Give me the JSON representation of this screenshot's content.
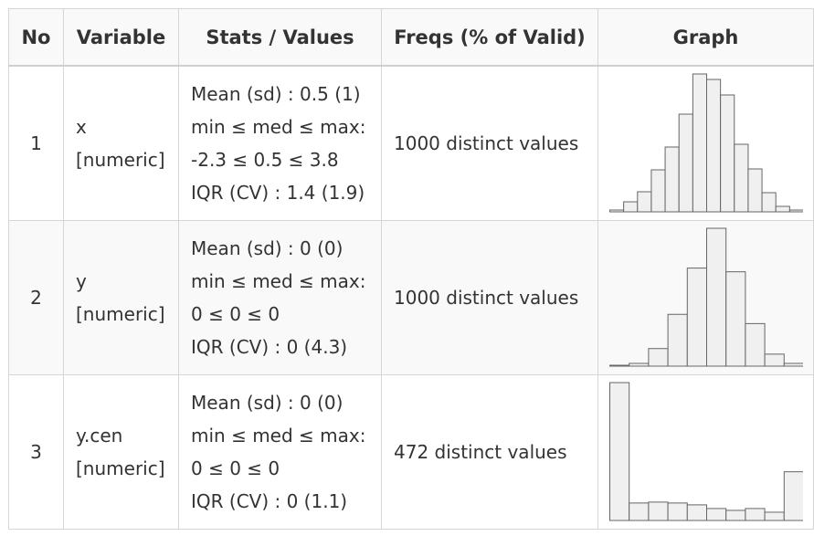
{
  "table": {
    "headers": {
      "no": "No",
      "variable": "Variable",
      "stats": "Stats / Values",
      "freqs": "Freqs (% of Valid)",
      "graph": "Graph"
    },
    "rows": [
      {
        "no": "1",
        "name": "x",
        "type": "[numeric]",
        "stats": [
          "Mean (sd) : 0.5 (1)",
          "min ≤ med ≤ max:",
          "-2.3 ≤ 0.5 ≤ 3.8",
          "IQR (CV) : 1.4 (1.9)"
        ],
        "freqs": "1000 distinct values"
      },
      {
        "no": "2",
        "name": "y",
        "type": "[numeric]",
        "stats": [
          "Mean (sd) : 0 (0)",
          "min ≤ med ≤ max:",
          "0 ≤ 0 ≤ 0",
          "IQR (CV) : 0 (4.3)"
        ],
        "freqs": "1000 distinct values"
      },
      {
        "no": "3",
        "name": "y.cen",
        "type": "[numeric]",
        "stats": [
          "Mean (sd) : 0 (0)",
          "min ≤ med ≤ max:",
          "0 ≤ 0 ≤ 0",
          "IQR (CV) : 0 (1.1)"
        ],
        "freqs": "472 distinct values"
      }
    ]
  },
  "chart_data": [
    {
      "type": "bar",
      "variable": "x",
      "values": [
        2,
        11,
        22,
        46,
        71,
        107,
        151,
        145,
        128,
        74,
        47,
        21,
        6,
        2
      ]
    },
    {
      "type": "bar",
      "variable": "y",
      "values": [
        1,
        3,
        19,
        56,
        106,
        149,
        102,
        46,
        13,
        3
      ]
    },
    {
      "type": "bar",
      "variable": "y.cen",
      "values": [
        150,
        19,
        20,
        19,
        17,
        13,
        11,
        13,
        9,
        53
      ]
    }
  ],
  "colors": {
    "bar_fill": "#f0f0f0",
    "bar_stroke": "#666666",
    "grid": "#d6d6d6",
    "alt_row": "#f9f9f9",
    "text": "#333333"
  }
}
